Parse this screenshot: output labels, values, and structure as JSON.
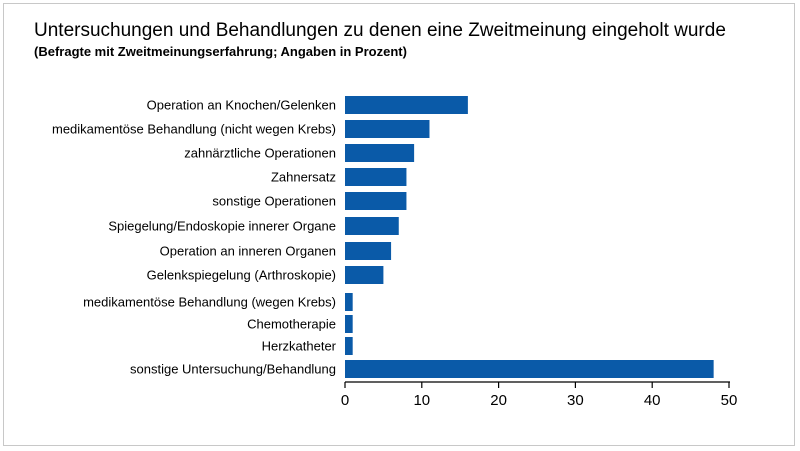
{
  "header": {
    "title": "Untersuchungen und Behandlungen zu denen eine Zweitmeinung eingeholt wurde",
    "subtitle": "(Befragte mit Zweitmeinungserfahrung; Angaben in Prozent)"
  },
  "chart_data": {
    "type": "bar",
    "orientation": "horizontal",
    "title": "Untersuchungen und Behandlungen zu denen eine Zweitmeinung eingeholt wurde",
    "subtitle": "(Befragte mit Zweitmeinungserfahrung; Angaben in Prozent)",
    "categories": [
      "Operation an Knochen/Gelenken",
      "medikamentöse Behandlung (nicht wegen Krebs)",
      "zahnärztliche Operationen",
      "Zahnersatz",
      "sonstige Operationen",
      "Spiegelung/Endoskopie innerer Organe",
      "Operation an inneren Organen",
      "Gelenkspiegelung (Arthroskopie)",
      "medikamentöse Behandlung (wegen Krebs)",
      "Chemotherapie",
      "Herzkatheter",
      "sonstige Untersuchung/Behandlung"
    ],
    "values": [
      16,
      11,
      9,
      8,
      8,
      7,
      6,
      5,
      1,
      1,
      1,
      48
    ],
    "xlim": [
      0,
      50
    ],
    "xticks": [
      0,
      10,
      20,
      30,
      40,
      50
    ],
    "xlabel": "",
    "ylabel": "",
    "grid": false,
    "legend": "none",
    "bar_color": "#0a5aa8"
  }
}
